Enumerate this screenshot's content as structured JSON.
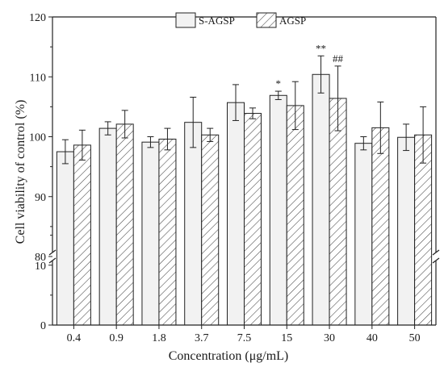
{
  "chart_data": {
    "type": "bar",
    "xlabel": "Concentration (μg/mL)",
    "ylabel": "Cell viability of control (%)",
    "categories": [
      "0.4",
      "0.9",
      "1.8",
      "3.7",
      "7.5",
      "15",
      "30",
      "40",
      "50"
    ],
    "series": [
      {
        "name": "S-AGSP",
        "values": [
          97.5,
          101.4,
          99.1,
          102.4,
          105.7,
          106.9,
          110.4,
          98.9,
          99.9
        ],
        "errors": [
          2.0,
          1.1,
          0.9,
          4.2,
          3.0,
          0.7,
          3.1,
          1.1,
          2.2
        ],
        "fill": "#f2f2f2",
        "pattern": "solid"
      },
      {
        "name": "AGSP",
        "values": [
          98.6,
          102.1,
          99.6,
          100.3,
          103.9,
          105.2,
          106.4,
          101.5,
          100.3
        ],
        "errors": [
          2.5,
          2.3,
          1.8,
          1.1,
          0.9,
          4.0,
          5.4,
          4.3,
          4.7
        ],
        "fill": "#ffffff",
        "pattern": "hatched"
      }
    ],
    "significance": [
      {
        "category": "15",
        "series": "S-AGSP",
        "label": "*"
      },
      {
        "category": "30",
        "series": "S-AGSP",
        "label": "**"
      },
      {
        "category": "30",
        "series": "AGSP",
        "label": "##"
      }
    ],
    "y_axis": {
      "broken": true,
      "lower_segment": {
        "range": [
          0,
          20
        ],
        "ticks": [
          "0",
          "10"
        ]
      },
      "upper_segment": {
        "range": [
          80,
          120
        ],
        "ticks": [
          "80",
          "90",
          "100",
          "110",
          "120"
        ]
      }
    },
    "legend_position": "top-center",
    "grid": false
  }
}
